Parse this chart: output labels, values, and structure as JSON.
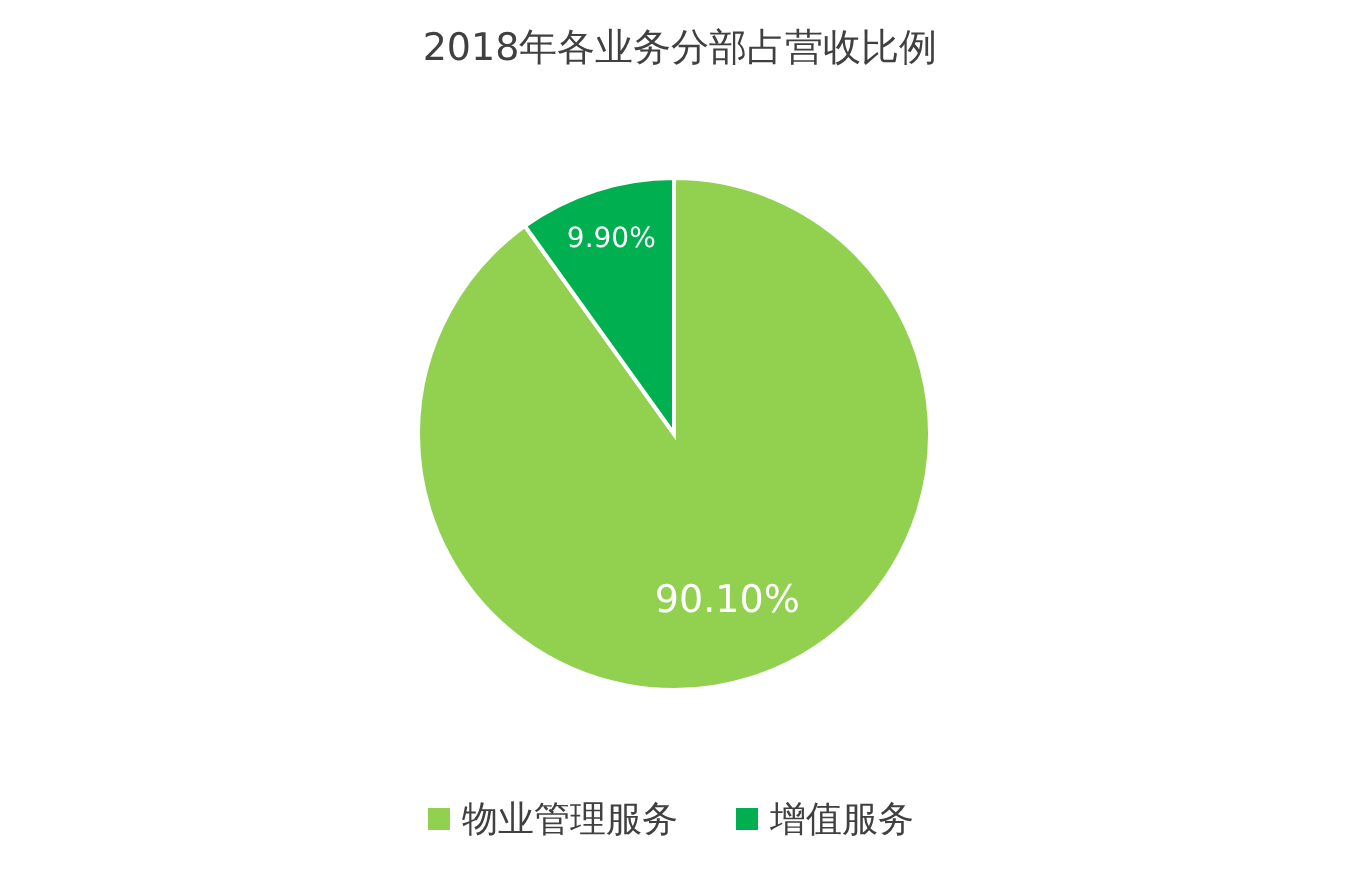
{
  "chart_data": {
    "type": "pie",
    "title": "2018年各业务分部占营收比例",
    "categories": [
      "物业管理服务",
      "增值服务"
    ],
    "values": [
      90.1,
      9.9
    ],
    "colors": [
      "#92d050",
      "#00b050"
    ],
    "value_labels": [
      "90.10%",
      "9.90%"
    ],
    "legend": "bottom"
  }
}
